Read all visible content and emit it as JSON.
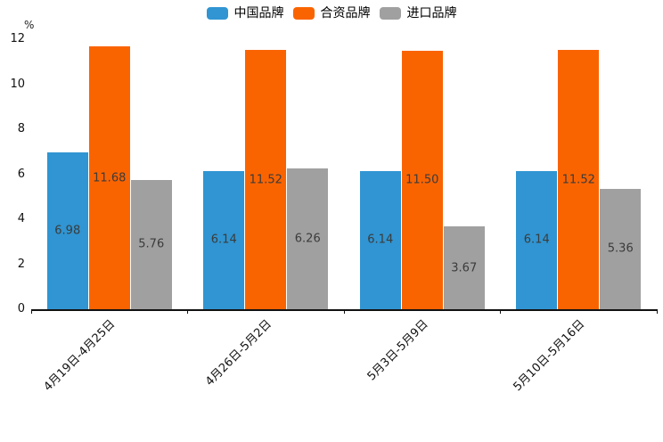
{
  "chart_data": {
    "type": "bar",
    "title": "",
    "xlabel": "",
    "ylabel": "%",
    "ylim": [
      0,
      12
    ],
    "yticks": [
      0,
      2,
      4,
      6,
      8,
      10,
      12
    ],
    "grid": false,
    "legend_position": "top",
    "value_labels": true,
    "value_label_decimals": 2,
    "categories": [
      "4月19日-4月25日",
      "4月26日-5月2日",
      "5月3日-5月9日",
      "5月10日-5月16日"
    ],
    "series": [
      {
        "name": "中国品牌",
        "color": "#3095d2",
        "values": [
          6.98,
          6.14,
          6.14,
          6.14
        ]
      },
      {
        "name": "合资品牌",
        "color": "#fa6400",
        "values": [
          11.68,
          11.52,
          11.5,
          11.52
        ]
      },
      {
        "name": "进口品牌",
        "color": "#a0a0a0",
        "values": [
          5.76,
          6.26,
          3.67,
          5.36
        ]
      }
    ],
    "colors": {
      "axis_line": "#111111",
      "tick_text": "#111111",
      "value_label_text": "#3b3b3b",
      "background": "#ffffff"
    }
  }
}
